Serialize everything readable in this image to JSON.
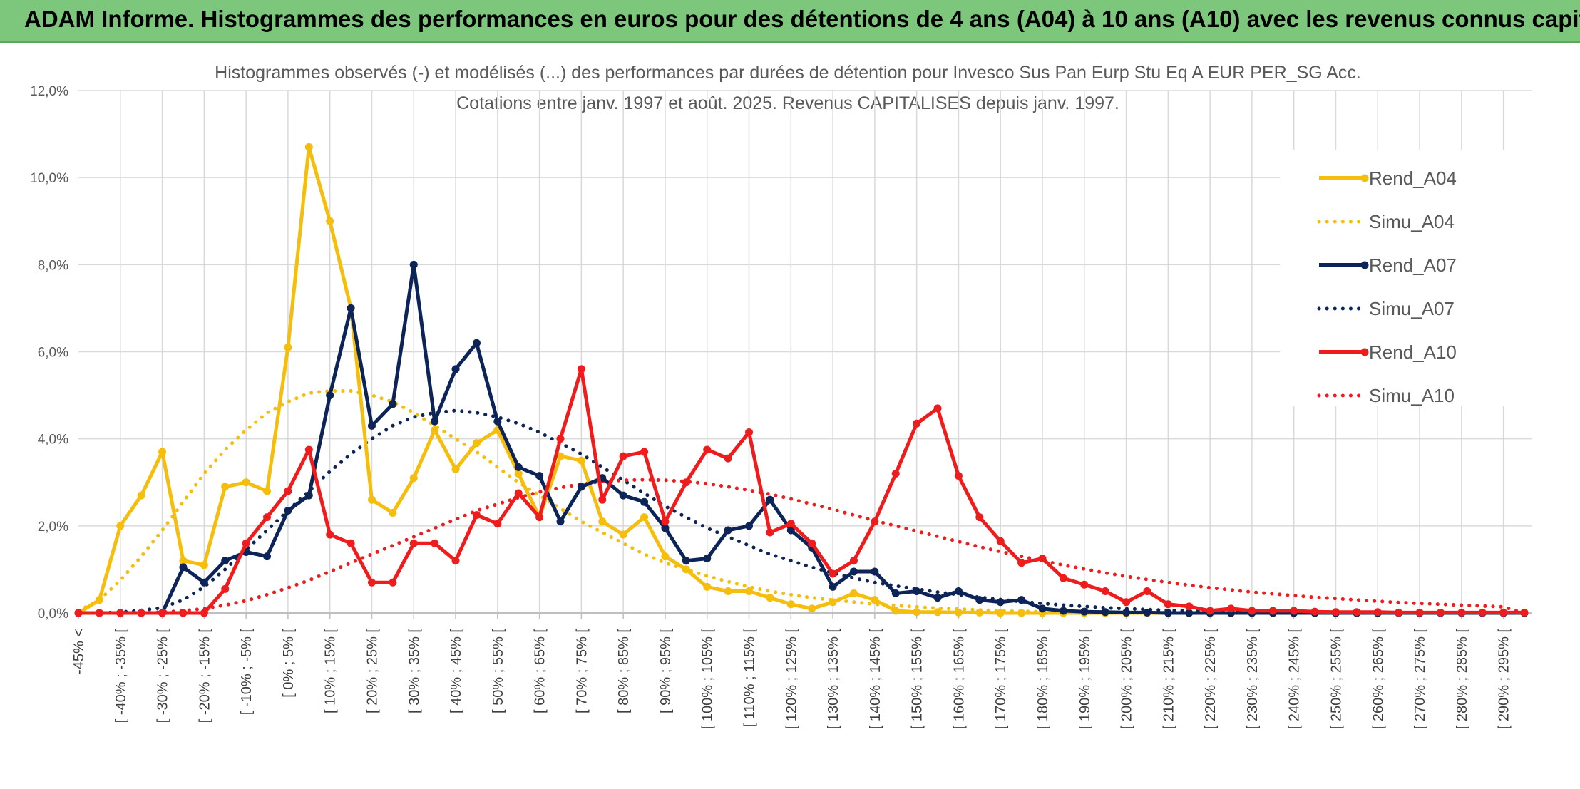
{
  "banner": {
    "title": "ADAM Informe. Histogrammes des performances en euros pour des détentions de 4 ans (A04) à 10 ans (A10) avec les revenus connus capitalisés"
  },
  "colors": {
    "banner_bg": "#7dc77d",
    "a04": "#f5bd0c",
    "a07": "#0d2458",
    "a10": "#ee1c1c",
    "grid": "#d9d9d9"
  },
  "chart_data": {
    "type": "line",
    "title_line1": "Histogrammes observés (-) et modélisés (...) des performances par durées de détention pour Invesco Sus Pan Eurp Stu Eq A EUR PER_SG Acc.",
    "title_line2": "Cotations entre janv. 1997 et août. 2025. Revenus CAPITALISES depuis janv. 1997.",
    "ylim": [
      0,
      12
    ],
    "yticks": [
      "0,0%",
      "2,0%",
      "4,0%",
      "6,0%",
      "8,0%",
      "10,0%",
      "12,0%"
    ],
    "grid": true,
    "legend_position": "right",
    "x_labels": [
      "-45% <",
      "[ -40% ; -35% [",
      "[ -30% ; -25% [",
      "[ -20% ; -15% [",
      "[ -10% ; -5% [",
      "[ 0% ; 5% [",
      "[ 10% ; 15% [",
      "[ 20% ; 25% [",
      "[ 30% ; 35% [",
      "[ 40% ; 45% [",
      "[ 50% ; 55% [",
      "[ 60% ; 65% [",
      "[ 70% ; 75% [",
      "[ 80% ; 85% [",
      "[ 90% ; 95% [",
      "[ 100% ; 105% [",
      "[ 110% ; 115% [",
      "[ 120% ; 125% [",
      "[ 130% ; 135% [",
      "[ 140% ; 145% [",
      "[ 150% ; 155% [",
      "[ 160% ; 165% [",
      "[ 170% ; 175% [",
      "[ 180% ; 185% [",
      "[ 190% ; 195% [",
      "[ 200% ; 205% [",
      "[ 210% ; 215% [",
      "[ 220% ; 225% [",
      "[ 230% ; 235% [",
      "[ 240% ; 245% [",
      "[ 250% ; 255% [",
      "[ 260% ; 265% [",
      "[ 270% ; 275% [",
      "[ 280% ; 285% [",
      "[ 290% ; 295% ["
    ],
    "series": [
      {
        "name": "Rend_A04",
        "style": "solid",
        "color": "#f5bd0c",
        "values": [
          0,
          0.3,
          2.0,
          2.7,
          3.7,
          1.2,
          1.1,
          2.9,
          3.0,
          2.8,
          6.1,
          10.7,
          9.0,
          7.0,
          2.6,
          2.3,
          3.1,
          4.2,
          3.3,
          3.9,
          4.2,
          3.2,
          2.2,
          3.6,
          3.5,
          2.1,
          1.8,
          2.2,
          1.3,
          1.0,
          0.6,
          0.5,
          0.5,
          0.35,
          0.2,
          0.1,
          0.25,
          0.45,
          0.3,
          0.05,
          0.02,
          0.02,
          0.01,
          0.01,
          0.0,
          0.0,
          0.0,
          0.0,
          0.0,
          0.0,
          0.0,
          0.0,
          0.0,
          0.0,
          0.0,
          0.0,
          0.0,
          0.0,
          0.0,
          0.0,
          0.0,
          0.0,
          0.0,
          0.0,
          0.0,
          0.0,
          0.0,
          0.0,
          0.0,
          0.0
        ]
      },
      {
        "name": "Simu_A04",
        "style": "dotted",
        "color": "#f5bd0c",
        "values": [
          0.05,
          0.3,
          0.75,
          1.3,
          1.9,
          2.55,
          3.2,
          3.75,
          4.2,
          4.6,
          4.85,
          5.05,
          5.1,
          5.1,
          5.0,
          4.85,
          4.6,
          4.3,
          4.0,
          3.7,
          3.35,
          3.0,
          2.7,
          2.4,
          2.1,
          1.85,
          1.6,
          1.35,
          1.15,
          1.0,
          0.85,
          0.72,
          0.6,
          0.5,
          0.42,
          0.35,
          0.3,
          0.25,
          0.2,
          0.17,
          0.14,
          0.11,
          0.09,
          0.07,
          0.05,
          0.04,
          0.03,
          0.02,
          0.02,
          0.01,
          0.01,
          0.01,
          0.0,
          0.0,
          0.0,
          0.0,
          0.0,
          0.0,
          0.0,
          0.0,
          0.0,
          0.0,
          0.0,
          0.0,
          0.0,
          0.0,
          0.0,
          0.0,
          0.0,
          0.0
        ]
      },
      {
        "name": "Rend_A07",
        "style": "solid",
        "color": "#0d2458",
        "values": [
          0,
          0,
          0,
          0,
          0,
          1.05,
          0.7,
          1.2,
          1.4,
          1.3,
          2.35,
          2.7,
          5.0,
          7.0,
          4.3,
          4.8,
          8.0,
          4.4,
          5.6,
          6.2,
          4.4,
          3.35,
          3.15,
          2.1,
          2.9,
          3.1,
          2.7,
          2.55,
          1.95,
          1.2,
          1.25,
          1.9,
          2.0,
          2.6,
          1.9,
          1.5,
          0.6,
          0.95,
          0.95,
          0.45,
          0.5,
          0.35,
          0.5,
          0.3,
          0.25,
          0.3,
          0.1,
          0.05,
          0.03,
          0.02,
          0.01,
          0.01,
          0.0,
          0.0,
          0.0,
          0.0,
          0.0,
          0.0,
          0.0,
          0.0,
          0.0,
          0.0,
          0.0,
          0.0,
          0.0,
          0.0,
          0.0,
          0.0,
          0.0,
          0.0
        ]
      },
      {
        "name": "Simu_A07",
        "style": "dotted",
        "color": "#0d2458",
        "values": [
          0.0,
          0.0,
          0.02,
          0.06,
          0.12,
          0.3,
          0.6,
          1.0,
          1.45,
          1.9,
          2.35,
          2.8,
          3.25,
          3.65,
          4.0,
          4.3,
          4.5,
          4.6,
          4.65,
          4.6,
          4.5,
          4.35,
          4.15,
          3.9,
          3.65,
          3.35,
          3.05,
          2.75,
          2.45,
          2.2,
          1.95,
          1.75,
          1.55,
          1.35,
          1.2,
          1.05,
          0.92,
          0.8,
          0.7,
          0.62,
          0.55,
          0.48,
          0.42,
          0.36,
          0.31,
          0.26,
          0.22,
          0.18,
          0.15,
          0.12,
          0.1,
          0.08,
          0.06,
          0.05,
          0.04,
          0.03,
          0.02,
          0.02,
          0.01,
          0.01,
          0.01,
          0.0,
          0.0,
          0.0,
          0.0,
          0.0,
          0.0,
          0.0,
          0.0,
          0.0
        ]
      },
      {
        "name": "Rend_A10",
        "style": "solid",
        "color": "#ee1c1c",
        "values": [
          0,
          0,
          0,
          0,
          0,
          0,
          0,
          0.55,
          1.6,
          2.2,
          2.8,
          3.75,
          1.8,
          1.6,
          0.7,
          0.7,
          1.6,
          1.6,
          1.2,
          2.25,
          2.05,
          2.75,
          2.2,
          4.0,
          5.6,
          2.6,
          3.6,
          3.7,
          2.1,
          3.0,
          3.75,
          3.55,
          4.15,
          1.85,
          2.05,
          1.6,
          0.9,
          1.2,
          2.1,
          3.2,
          4.35,
          4.7,
          3.15,
          2.2,
          1.65,
          1.15,
          1.25,
          0.8,
          0.65,
          0.5,
          0.25,
          0.5,
          0.2,
          0.15,
          0.05,
          0.1,
          0.05,
          0.05,
          0.05,
          0.03,
          0.02,
          0.02,
          0.02,
          0.01,
          0.01,
          0.01,
          0.01,
          0.01,
          0.01,
          0.01
        ]
      },
      {
        "name": "Simu_A10",
        "style": "dotted",
        "color": "#ee1c1c",
        "values": [
          0.0,
          0.0,
          0.0,
          0.01,
          0.02,
          0.05,
          0.1,
          0.18,
          0.28,
          0.42,
          0.58,
          0.75,
          0.95,
          1.15,
          1.35,
          1.55,
          1.75,
          1.95,
          2.15,
          2.35,
          2.5,
          2.65,
          2.78,
          2.88,
          2.96,
          3.02,
          3.05,
          3.06,
          3.05,
          3.02,
          2.97,
          2.9,
          2.82,
          2.73,
          2.62,
          2.5,
          2.38,
          2.25,
          2.12,
          2.0,
          1.88,
          1.76,
          1.64,
          1.52,
          1.41,
          1.3,
          1.2,
          1.1,
          1.01,
          0.92,
          0.84,
          0.77,
          0.7,
          0.64,
          0.58,
          0.53,
          0.48,
          0.44,
          0.4,
          0.36,
          0.33,
          0.3,
          0.27,
          0.24,
          0.22,
          0.2,
          0.18,
          0.16,
          0.14,
          0.0
        ]
      }
    ]
  }
}
